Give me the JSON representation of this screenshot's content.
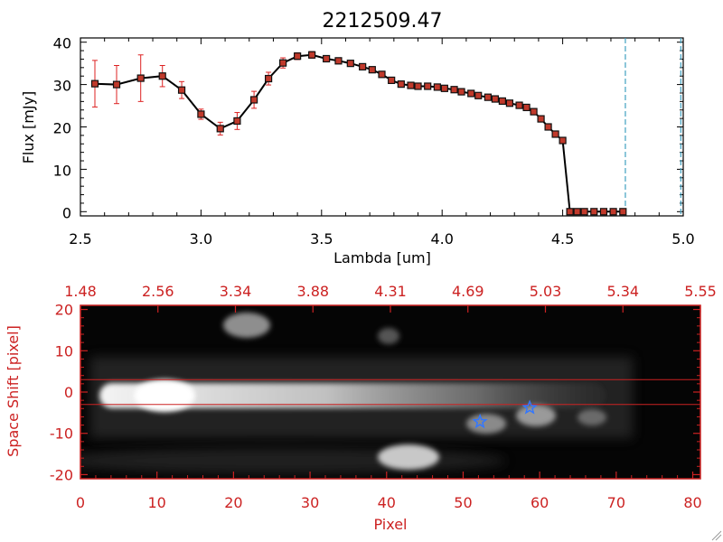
{
  "chart_data": [
    {
      "type": "line",
      "title": "2212509.47",
      "xlabel": "Lambda [um]",
      "ylabel": "Flux [mJy]",
      "xlim": [
        2.5,
        5.0
      ],
      "ylim": [
        -1,
        41
      ],
      "xticks": [
        "2.5",
        "3.0",
        "3.5",
        "4.0",
        "4.5",
        "5.0"
      ],
      "yticks": [
        "0",
        "10",
        "20",
        "30",
        "40"
      ],
      "series": [
        {
          "x": [
            2.56,
            2.65,
            2.75,
            2.84,
            2.92,
            3.0,
            3.08,
            3.15,
            3.22,
            3.28,
            3.34,
            3.4,
            3.46,
            3.52,
            3.57,
            3.62,
            3.67,
            3.71,
            3.75,
            3.79,
            3.83,
            3.87,
            3.9,
            3.94,
            3.98,
            4.01,
            4.05,
            4.08,
            4.12,
            4.15,
            4.19,
            4.22,
            4.25,
            4.28,
            4.32,
            4.35,
            4.38,
            4.41,
            4.44,
            4.47,
            4.5,
            4.53,
            4.56,
            4.59,
            4.63,
            4.67,
            4.71,
            4.75
          ],
          "y": [
            30.2,
            30.0,
            31.5,
            32.0,
            28.7,
            23.0,
            19.6,
            21.4,
            26.4,
            31.4,
            35.1,
            36.7,
            37.0,
            36.1,
            35.6,
            35.0,
            34.2,
            33.5,
            32.4,
            31.0,
            30.1,
            29.8,
            29.6,
            29.6,
            29.4,
            29.1,
            28.8,
            28.3,
            27.9,
            27.4,
            27.0,
            26.6,
            26.1,
            25.6,
            25.1,
            24.6,
            23.6,
            21.9,
            20.0,
            18.3,
            16.8,
            0,
            0,
            0,
            0,
            0,
            0,
            0
          ],
          "yerr": [
            5.5,
            4.5,
            5.5,
            2.5,
            2.0,
            1.2,
            1.5,
            2.0,
            2.0,
            1.5,
            1.2,
            0.8,
            0.8,
            0.6,
            0.6,
            0.5,
            0.5,
            0.5,
            0.5,
            0.5,
            0.5,
            0.5,
            0.5,
            0.5,
            0.5,
            0.5,
            0.5,
            0.5,
            0.5,
            0.5,
            0.5,
            0.5,
            0.5,
            0.5,
            0.5,
            0.5,
            0.5,
            0.5,
            0.5,
            0.5,
            0.5,
            0,
            0,
            0,
            0,
            0,
            0,
            0
          ]
        }
      ],
      "vlines": [
        4.76,
        4.99
      ],
      "colors": {
        "line": "#000000",
        "marker_fill": "#c0392b",
        "error_bar": "#dd2222",
        "vline": "#40a0c0"
      }
    },
    {
      "type": "heatmap",
      "xlabel": "Pixel",
      "ylabel": "Space Shift [pixel]",
      "xlim": [
        0,
        81
      ],
      "ylim": [
        -21,
        21
      ],
      "xticks": [
        "0",
        "10",
        "20",
        "30",
        "40",
        "50",
        "60",
        "70",
        "80"
      ],
      "yticks": [
        "-20",
        "-10",
        "0",
        "10",
        "20"
      ],
      "top_ticks": [
        "1.48",
        "2.56",
        "3.34",
        "3.88",
        "4.31",
        "4.69",
        "5.03",
        "5.34",
        "5.55"
      ],
      "hlines": [
        3,
        -3
      ],
      "markers": [
        {
          "x": 52.2,
          "y": -7.2
        },
        {
          "x": 58.7,
          "y": -3.8
        }
      ],
      "colors": {
        "axis": "#cc2222",
        "line": "#cc2222",
        "marker": "#3377ff",
        "background": "#000000"
      }
    }
  ]
}
